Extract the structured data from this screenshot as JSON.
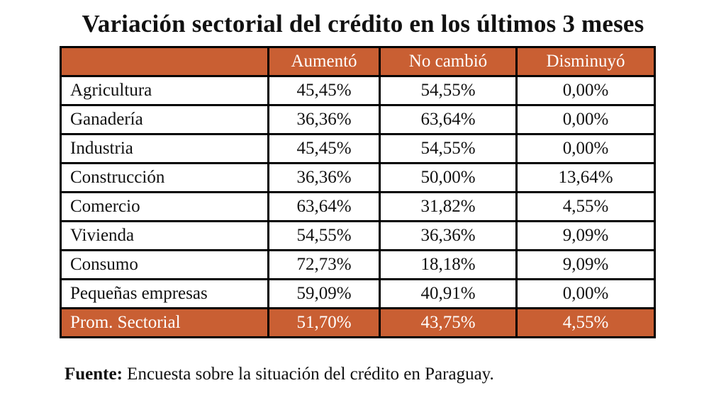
{
  "title": "Variación sectorial del crédito en los últimos 3 meses",
  "table": {
    "headers": [
      "",
      "Aumentó",
      "No cambió",
      "Disminuyó"
    ],
    "rows": [
      [
        "Agricultura",
        "45,45%",
        "54,55%",
        "0,00%"
      ],
      [
        "Ganadería",
        "36,36%",
        "63,64%",
        "0,00%"
      ],
      [
        "Industria",
        "45,45%",
        "54,55%",
        "0,00%"
      ],
      [
        "Construcción",
        "36,36%",
        "50,00%",
        "13,64%"
      ],
      [
        "Comercio",
        "63,64%",
        "31,82%",
        "4,55%"
      ],
      [
        "Vivienda",
        "54,55%",
        "36,36%",
        "9,09%"
      ],
      [
        "Consumo",
        "72,73%",
        "18,18%",
        "9,09%"
      ],
      [
        "Pequeñas empresas",
        "59,09%",
        "40,91%",
        "0,00%"
      ]
    ],
    "footer": [
      "Prom. Sectorial",
      "51,70%",
      "43,75%",
      "4,55%"
    ]
  },
  "source": {
    "label": "Fuente:",
    "text": " Encuesta sobre la situación del crédito en Paraguay."
  },
  "colors": {
    "accent": "#c95f33",
    "border": "#000000"
  }
}
